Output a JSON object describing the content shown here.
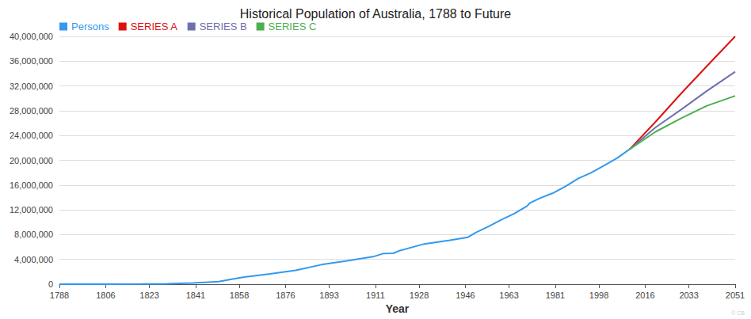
{
  "chart_data": {
    "type": "line",
    "title": "Historical Population of Australia, 1788 to Future",
    "x_label": "Year",
    "annotations": [
      "© CB"
    ],
    "xlim": [
      1788,
      2051
    ],
    "xticks": [
      1788,
      1806,
      1823,
      1841,
      1858,
      1876,
      1893,
      1911,
      1928,
      1946,
      1963,
      1981,
      1998,
      2016,
      2033,
      2051
    ],
    "ylim": [
      0,
      40000000
    ],
    "yticks": [
      0,
      {
        "value": 4000000,
        "label": "4,000,000"
      },
      {
        "value": 8000000,
        "label": "8,000,000"
      },
      {
        "value": 12000000,
        "label": "12,000,000"
      },
      {
        "value": 16000000,
        "label": "16,000,000"
      },
      {
        "value": 20000000,
        "label": "20,000,000"
      },
      {
        "value": 24000000,
        "label": "24,000,000"
      },
      {
        "value": 28000000,
        "label": "28,000,000"
      },
      {
        "value": 32000000,
        "label": "32,000,000"
      },
      {
        "value": 36000000,
        "label": "36,000,000"
      },
      {
        "value": 40000000,
        "label": "40,000,000"
      }
    ],
    "grid": true,
    "legend": "top-left",
    "series": [
      {
        "name": "Persons",
        "color": "#3399ee",
        "x": [
          1788,
          1800,
          1810,
          1820,
          1830,
          1840,
          1850,
          1855,
          1860,
          1870,
          1880,
          1890,
          1900,
          1910,
          1914,
          1918,
          1920,
          1930,
          1940,
          1947,
          1950,
          1955,
          1960,
          1965,
          1970,
          1971,
          1975,
          1980,
          1985,
          1990,
          1995,
          2000,
          2005,
          2010
        ],
        "values": [
          1000,
          5000,
          12000,
          34000,
          70000,
          190000,
          405000,
          790000,
          1150000,
          1650000,
          2230000,
          3150000,
          3770000,
          4430000,
          4940000,
          4980000,
          5360000,
          6500000,
          7080000,
          7580000,
          8310000,
          9310000,
          10390000,
          11390000,
          12600000,
          13070000,
          13890000,
          14690000,
          15790000,
          17070000,
          18000000,
          19150000,
          20330000,
          21800000
        ]
      },
      {
        "name": "SERIES A",
        "color": "#dd1111",
        "x": [
          2010,
          2020,
          2030,
          2040,
          2051
        ],
        "values": [
          21800000,
          26200000,
          30800000,
          35200000,
          40000000
        ]
      },
      {
        "name": "SERIES B",
        "color": "#6f6faf",
        "x": [
          2010,
          2020,
          2030,
          2040,
          2051
        ],
        "values": [
          21800000,
          25300000,
          28200000,
          31200000,
          34300000
        ]
      },
      {
        "name": "SERIES C",
        "color": "#4caf50",
        "x": [
          2010,
          2020,
          2030,
          2040,
          2051
        ],
        "values": [
          21800000,
          24600000,
          26800000,
          28800000,
          30400000
        ]
      }
    ]
  }
}
